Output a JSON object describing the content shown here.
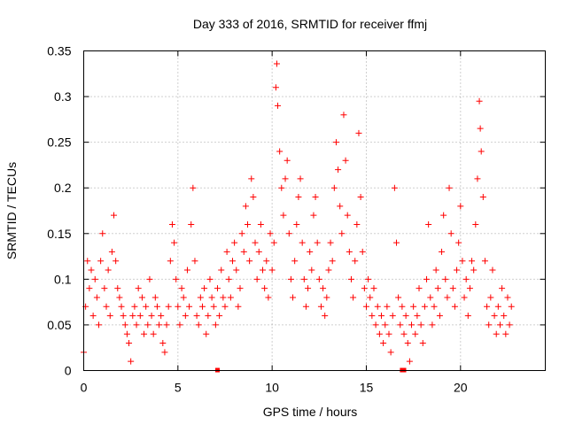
{
  "chart_data": {
    "type": "scatter",
    "title": "Day 333 of 2016, SRMTID for receiver ffmj",
    "xlabel": "GPS time / hours",
    "ylabel": "SRMTID / TECUs",
    "xlim": [
      0,
      24.5
    ],
    "ylim": [
      0,
      0.35
    ],
    "xticks": [
      0,
      5,
      10,
      15,
      20
    ],
    "xtick_labels": [
      "0",
      "5",
      "10",
      "15",
      "20"
    ],
    "yticks": [
      0,
      0.05,
      0.1,
      0.15,
      0.2,
      0.25,
      0.3,
      0.35
    ],
    "ytick_labels": [
      "0",
      "0.05",
      "0.1",
      "0.15",
      "0.2",
      "0.25",
      "0.3",
      "0.35"
    ],
    "grid": true,
    "marker": "+",
    "color": "#ff0000",
    "series": [
      {
        "name": "SRMTID",
        "points": [
          [
            0.0,
            0.02
          ],
          [
            0.1,
            0.07
          ],
          [
            0.2,
            0.12
          ],
          [
            0.3,
            0.09
          ],
          [
            0.4,
            0.11
          ],
          [
            0.5,
            0.06
          ],
          [
            0.6,
            0.1
          ],
          [
            0.7,
            0.08
          ],
          [
            0.8,
            0.05
          ],
          [
            0.9,
            0.12
          ],
          [
            1.0,
            0.15
          ],
          [
            1.1,
            0.09
          ],
          [
            1.2,
            0.07
          ],
          [
            1.3,
            0.11
          ],
          [
            1.4,
            0.06
          ],
          [
            1.5,
            0.13
          ],
          [
            1.6,
            0.17
          ],
          [
            1.7,
            0.12
          ],
          [
            1.8,
            0.09
          ],
          [
            1.9,
            0.08
          ],
          [
            2.0,
            0.07
          ],
          [
            2.1,
            0.06
          ],
          [
            2.2,
            0.05
          ],
          [
            2.3,
            0.04
          ],
          [
            2.4,
            0.03
          ],
          [
            2.5,
            0.01
          ],
          [
            2.6,
            0.06
          ],
          [
            2.7,
            0.07
          ],
          [
            2.8,
            0.05
          ],
          [
            2.9,
            0.09
          ],
          [
            3.0,
            0.06
          ],
          [
            3.1,
            0.08
          ],
          [
            3.2,
            0.04
          ],
          [
            3.3,
            0.07
          ],
          [
            3.4,
            0.05
          ],
          [
            3.5,
            0.1
          ],
          [
            3.6,
            0.06
          ],
          [
            3.7,
            0.04
          ],
          [
            3.8,
            0.08
          ],
          [
            3.9,
            0.07
          ],
          [
            4.0,
            0.05
          ],
          [
            4.1,
            0.06
          ],
          [
            4.2,
            0.03
          ],
          [
            4.3,
            0.02
          ],
          [
            4.4,
            0.05
          ],
          [
            4.5,
            0.07
          ],
          [
            4.6,
            0.12
          ],
          [
            4.7,
            0.16
          ],
          [
            4.8,
            0.14
          ],
          [
            4.9,
            0.1
          ],
          [
            5.0,
            0.07
          ],
          [
            5.1,
            0.05
          ],
          [
            5.2,
            0.09
          ],
          [
            5.3,
            0.08
          ],
          [
            5.4,
            0.06
          ],
          [
            5.5,
            0.11
          ],
          [
            5.6,
            0.07
          ],
          [
            5.7,
            0.16
          ],
          [
            5.8,
            0.2
          ],
          [
            5.9,
            0.12
          ],
          [
            6.0,
            0.06
          ],
          [
            6.1,
            0.05
          ],
          [
            6.2,
            0.08
          ],
          [
            6.3,
            0.07
          ],
          [
            6.4,
            0.09
          ],
          [
            6.5,
            0.04
          ],
          [
            6.6,
            0.06
          ],
          [
            6.7,
            0.1
          ],
          [
            6.8,
            0.08
          ],
          [
            6.9,
            0.07
          ],
          [
            7.0,
            0.05
          ],
          [
            7.1,
            0.09
          ],
          [
            7.2,
            0.06
          ],
          [
            7.3,
            0.11
          ],
          [
            7.4,
            0.08
          ],
          [
            7.5,
            0.07
          ],
          [
            7.6,
            0.13
          ],
          [
            7.7,
            0.1
          ],
          [
            7.8,
            0.08
          ],
          [
            7.9,
            0.12
          ],
          [
            8.0,
            0.14
          ],
          [
            8.1,
            0.11
          ],
          [
            8.2,
            0.07
          ],
          [
            8.3,
            0.09
          ],
          [
            8.4,
            0.15
          ],
          [
            8.5,
            0.13
          ],
          [
            8.6,
            0.18
          ],
          [
            8.7,
            0.16
          ],
          [
            8.8,
            0.12
          ],
          [
            8.9,
            0.21
          ],
          [
            9.0,
            0.19
          ],
          [
            9.1,
            0.14
          ],
          [
            9.2,
            0.1
          ],
          [
            9.3,
            0.13
          ],
          [
            9.4,
            0.16
          ],
          [
            9.5,
            0.11
          ],
          [
            9.6,
            0.09
          ],
          [
            9.7,
            0.12
          ],
          [
            9.8,
            0.08
          ],
          [
            9.9,
            0.15
          ],
          [
            10.0,
            0.11
          ],
          [
            10.1,
            0.14
          ],
          [
            10.2,
            0.31
          ],
          [
            10.25,
            0.336
          ],
          [
            10.3,
            0.29
          ],
          [
            10.4,
            0.24
          ],
          [
            10.5,
            0.2
          ],
          [
            10.6,
            0.17
          ],
          [
            10.7,
            0.21
          ],
          [
            10.8,
            0.23
          ],
          [
            10.9,
            0.15
          ],
          [
            11.0,
            0.1
          ],
          [
            11.1,
            0.08
          ],
          [
            11.2,
            0.12
          ],
          [
            11.3,
            0.16
          ],
          [
            11.4,
            0.19
          ],
          [
            11.5,
            0.21
          ],
          [
            11.6,
            0.14
          ],
          [
            11.7,
            0.1
          ],
          [
            11.8,
            0.07
          ],
          [
            11.9,
            0.09
          ],
          [
            12.0,
            0.13
          ],
          [
            12.1,
            0.11
          ],
          [
            12.2,
            0.17
          ],
          [
            12.3,
            0.19
          ],
          [
            12.4,
            0.14
          ],
          [
            12.5,
            0.1
          ],
          [
            12.6,
            0.07
          ],
          [
            12.7,
            0.09
          ],
          [
            12.8,
            0.06
          ],
          [
            12.9,
            0.08
          ],
          [
            13.0,
            0.11
          ],
          [
            13.1,
            0.14
          ],
          [
            13.2,
            0.12
          ],
          [
            13.3,
            0.2
          ],
          [
            13.4,
            0.25
          ],
          [
            13.5,
            0.22
          ],
          [
            13.6,
            0.18
          ],
          [
            13.7,
            0.15
          ],
          [
            13.8,
            0.28
          ],
          [
            13.9,
            0.23
          ],
          [
            14.0,
            0.17
          ],
          [
            14.1,
            0.13
          ],
          [
            14.2,
            0.1
          ],
          [
            14.3,
            0.08
          ],
          [
            14.4,
            0.12
          ],
          [
            14.5,
            0.16
          ],
          [
            14.6,
            0.26
          ],
          [
            14.7,
            0.19
          ],
          [
            14.8,
            0.13
          ],
          [
            14.9,
            0.09
          ],
          [
            15.0,
            0.07
          ],
          [
            15.1,
            0.1
          ],
          [
            15.2,
            0.08
          ],
          [
            15.3,
            0.06
          ],
          [
            15.4,
            0.09
          ],
          [
            15.5,
            0.05
          ],
          [
            15.6,
            0.07
          ],
          [
            15.7,
            0.04
          ],
          [
            15.8,
            0.06
          ],
          [
            15.9,
            0.03
          ],
          [
            16.0,
            0.05
          ],
          [
            16.1,
            0.07
          ],
          [
            16.2,
            0.04
          ],
          [
            16.3,
            0.02
          ],
          [
            16.4,
            0.06
          ],
          [
            16.5,
            0.2
          ],
          [
            16.6,
            0.14
          ],
          [
            16.7,
            0.08
          ],
          [
            16.8,
            0.05
          ],
          [
            16.9,
            0.07
          ],
          [
            17.0,
            0.04
          ],
          [
            17.1,
            0.06
          ],
          [
            17.2,
            0.03
          ],
          [
            17.3,
            0.01
          ],
          [
            17.4,
            0.05
          ],
          [
            17.5,
            0.07
          ],
          [
            17.6,
            0.04
          ],
          [
            17.7,
            0.06
          ],
          [
            17.8,
            0.09
          ],
          [
            17.9,
            0.05
          ],
          [
            18.0,
            0.03
          ],
          [
            18.1,
            0.07
          ],
          [
            18.2,
            0.1
          ],
          [
            18.3,
            0.16
          ],
          [
            18.4,
            0.08
          ],
          [
            18.5,
            0.05
          ],
          [
            18.6,
            0.07
          ],
          [
            18.7,
            0.11
          ],
          [
            18.8,
            0.09
          ],
          [
            18.9,
            0.06
          ],
          [
            19.0,
            0.13
          ],
          [
            19.1,
            0.17
          ],
          [
            19.2,
            0.1
          ],
          [
            19.3,
            0.08
          ],
          [
            19.4,
            0.2
          ],
          [
            19.5,
            0.15
          ],
          [
            19.6,
            0.09
          ],
          [
            19.7,
            0.07
          ],
          [
            19.8,
            0.11
          ],
          [
            19.9,
            0.14
          ],
          [
            20.0,
            0.18
          ],
          [
            20.1,
            0.12
          ],
          [
            20.2,
            0.08
          ],
          [
            20.3,
            0.1
          ],
          [
            20.4,
            0.06
          ],
          [
            20.5,
            0.09
          ],
          [
            20.6,
            0.12
          ],
          [
            20.7,
            0.11
          ],
          [
            20.8,
            0.16
          ],
          [
            20.9,
            0.21
          ],
          [
            21.0,
            0.295
          ],
          [
            21.05,
            0.265
          ],
          [
            21.1,
            0.24
          ],
          [
            21.2,
            0.19
          ],
          [
            21.3,
            0.12
          ],
          [
            21.4,
            0.07
          ],
          [
            21.5,
            0.05
          ],
          [
            21.6,
            0.08
          ],
          [
            21.7,
            0.11
          ],
          [
            21.8,
            0.06
          ],
          [
            21.9,
            0.04
          ],
          [
            22.0,
            0.07
          ],
          [
            22.1,
            0.05
          ],
          [
            22.2,
            0.09
          ],
          [
            22.3,
            0.06
          ],
          [
            22.4,
            0.04
          ],
          [
            22.5,
            0.08
          ],
          [
            22.6,
            0.05
          ],
          [
            22.7,
            0.07
          ]
        ]
      }
    ],
    "axis_markers": [
      {
        "x": 7.1,
        "y": 0
      },
      {
        "x": 16.9,
        "y": 0
      },
      {
        "x": 17.0,
        "y": 0
      }
    ]
  }
}
